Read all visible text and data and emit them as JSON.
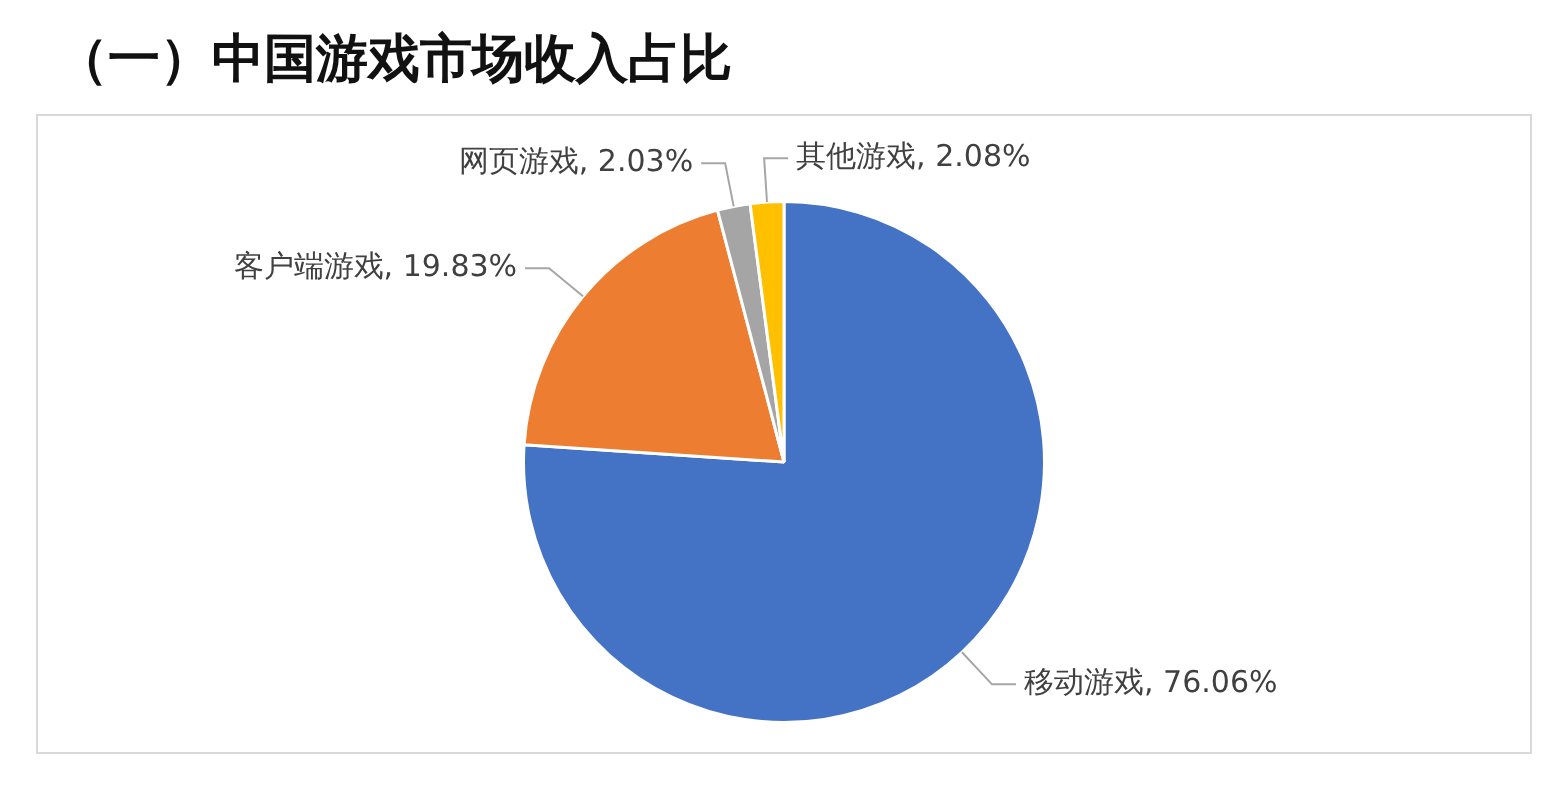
{
  "chart_data": {
    "type": "pie",
    "title": "（一）中国游戏市场收入占比",
    "categories": [
      "移动游戏",
      "客户端游戏",
      "网页游戏",
      "其他游戏"
    ],
    "values": [
      76.06,
      19.83,
      2.03,
      2.08
    ],
    "colors": [
      "#4472c4",
      "#ed7d31",
      "#a5a5a5",
      "#ffc000"
    ],
    "value_labels": [
      "76.06%",
      "19.83%",
      "2.03%",
      "2.08%"
    ],
    "legend": false
  }
}
